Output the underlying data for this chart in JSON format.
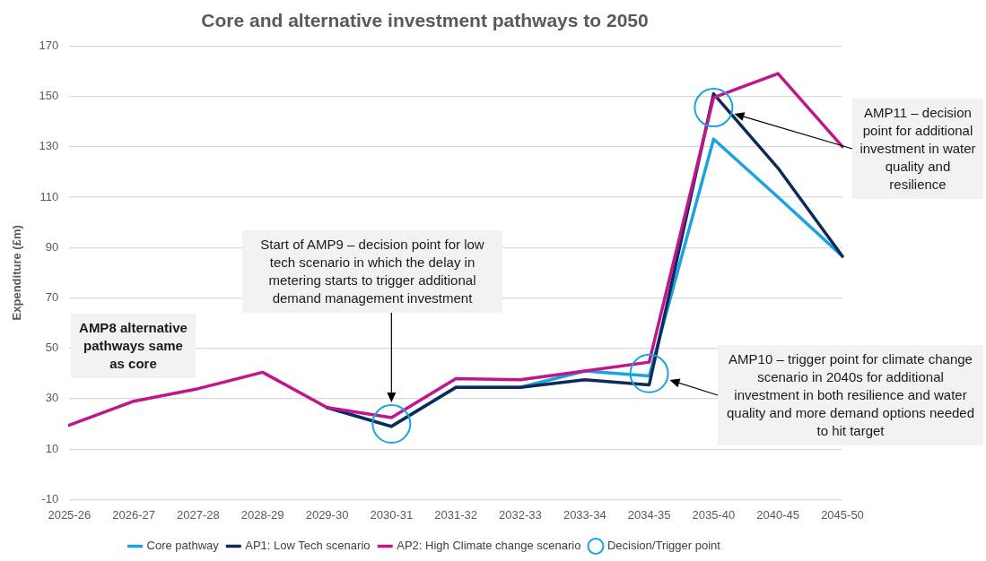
{
  "chart_data": {
    "type": "line",
    "title": "Core and alternative investment pathways to 2050",
    "ylabel": "Expenditure (£m)",
    "categories": [
      "2025-26",
      "2026-27",
      "2027-28",
      "2028-29",
      "2029-30",
      "2030-31",
      "2031-32",
      "2032-33",
      "2033-34",
      "2034-35",
      "2035-40",
      "2040-45",
      "2045-50"
    ],
    "series": [
      {
        "name": "Core pathway",
        "color": "#1aa3e0",
        "values": [
          null,
          null,
          null,
          null,
          26.5,
          19,
          34.5,
          34.5,
          41,
          39,
          133,
          110,
          86.5
        ]
      },
      {
        "name": "AP1: Low Tech scenario",
        "color": "#0e2a5a",
        "values": [
          null,
          null,
          null,
          null,
          26.5,
          19,
          34.5,
          34.5,
          37.5,
          35.5,
          151,
          121.5,
          86.5
        ]
      },
      {
        "name": "AP2: High Climate change scenario",
        "color": "#c0168c",
        "values": [
          19.5,
          29,
          34,
          40.5,
          26.5,
          22.5,
          38,
          37.5,
          41,
          44.5,
          149.5,
          159,
          130
        ]
      },
      {
        "name": "Decision/Trigger point",
        "type": "scatter",
        "marker": "circle",
        "color": "#1aa3e0",
        "x": [
          "2030-31",
          "2034-35",
          "2035-40"
        ],
        "values": [
          20,
          40,
          145.5
        ]
      }
    ],
    "ylim": [
      -10,
      170
    ],
    "yticks": [
      -10,
      10,
      30,
      50,
      70,
      90,
      110,
      130,
      150,
      170
    ],
    "grid": "y",
    "legend": "bottom",
    "marker": "none",
    "line_style": "solid",
    "annotations": [
      "AMP8 alternative pathways same as core",
      "Start of AMP9 – decision point for low tech scenario in which the delay in metering starts to trigger additional demand management investment",
      "AMP10 – trigger point for climate change scenario in 2040s for additional investment in both resilience and water quality and more demand options needed to hit target",
      "AMP11 – decision point for additional investment in water quality and resilience"
    ]
  }
}
